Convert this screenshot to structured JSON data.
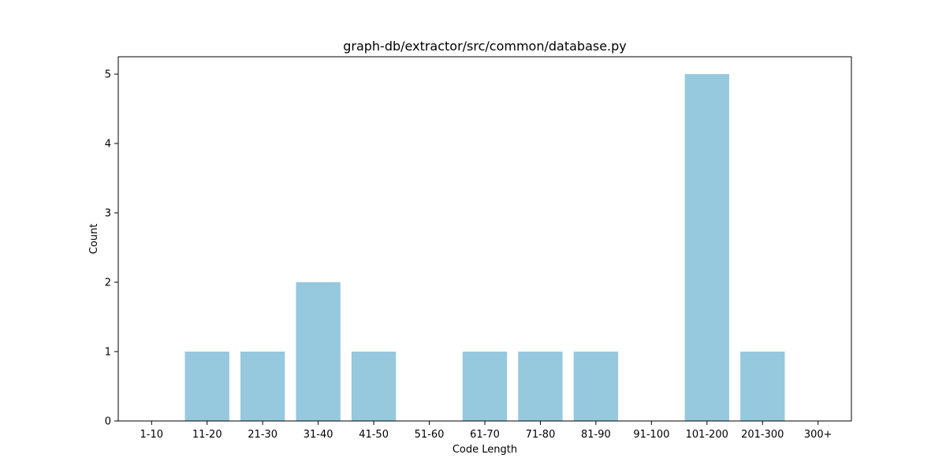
{
  "chart_data": {
    "type": "bar",
    "title": "graph-db/extractor/src/common/database.py",
    "xlabel": "Code Length",
    "ylabel": "Count",
    "categories": [
      "1-10",
      "11-20",
      "21-30",
      "31-40",
      "41-50",
      "51-60",
      "61-70",
      "71-80",
      "81-90",
      "91-100",
      "101-200",
      "201-300",
      "300+"
    ],
    "values": [
      0,
      1,
      1,
      2,
      1,
      0,
      1,
      1,
      1,
      0,
      5,
      1,
      0
    ],
    "ylim": [
      0,
      5.25
    ],
    "yticks": [
      0,
      1,
      2,
      3,
      4,
      5
    ],
    "bar_color": "#96c9dd",
    "grid": false,
    "legend": "none"
  }
}
